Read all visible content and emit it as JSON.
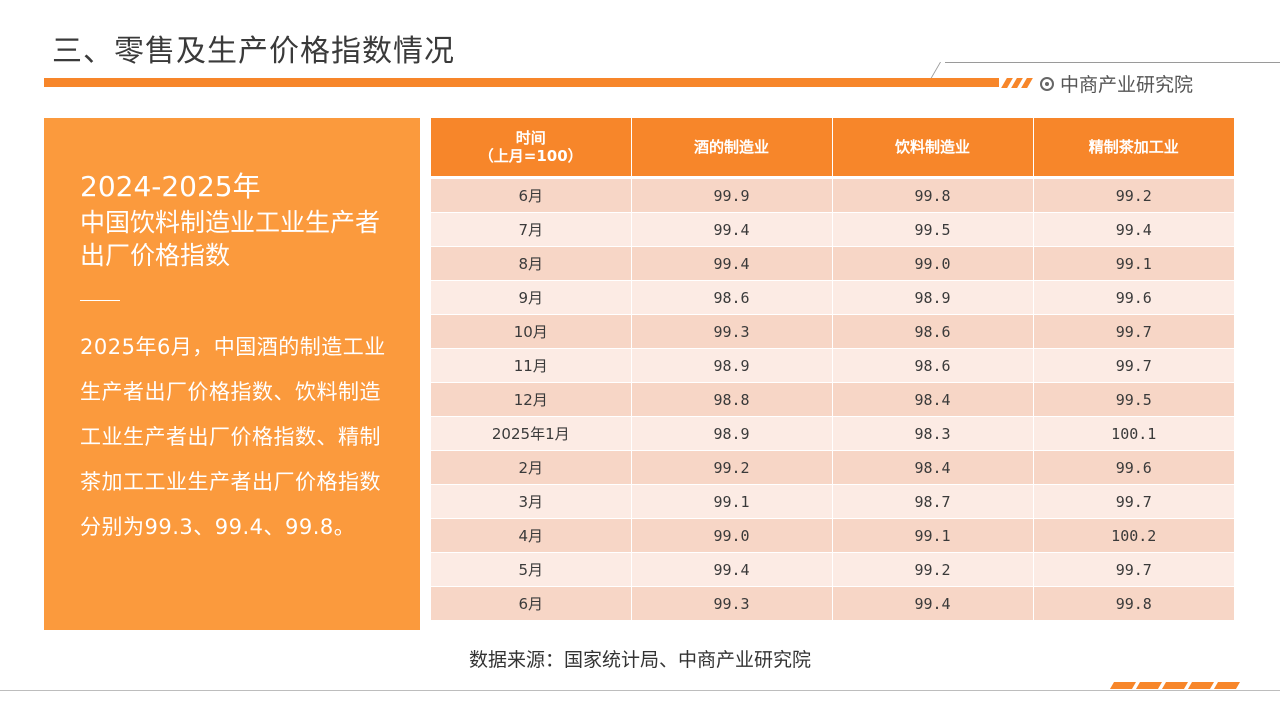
{
  "page": {
    "title": "三、零售及生产价格指数情况",
    "brand_name": "中商产业研究院"
  },
  "summary": {
    "years": "2024-2025年",
    "heading": "中国饮料制造业工业生产者出厂价格指数",
    "body": "2025年6月，中国酒的制造工业生产者出厂价格指数、饮料制造工业生产者出厂价格指数、精制茶加工工业生产者出厂价格指数分别为99.3、99.4、99.8。"
  },
  "table": {
    "headers": {
      "time_line1": "时间",
      "time_line2": "（上月=100）",
      "col1": "酒的制造业",
      "col2": "饮料制造业",
      "col3": "精制茶加工业"
    },
    "rows": [
      {
        "period": "6月",
        "liquor": "99.9",
        "beverage": "99.8",
        "tea": "99.2"
      },
      {
        "period": "7月",
        "liquor": "99.4",
        "beverage": "99.5",
        "tea": "99.4"
      },
      {
        "period": "8月",
        "liquor": "99.4",
        "beverage": "99.0",
        "tea": "99.1"
      },
      {
        "period": "9月",
        "liquor": "98.6",
        "beverage": "98.9",
        "tea": "99.6"
      },
      {
        "period": "10月",
        "liquor": "99.3",
        "beverage": "98.6",
        "tea": "99.7"
      },
      {
        "period": "11月",
        "liquor": "98.9",
        "beverage": "98.6",
        "tea": "99.7"
      },
      {
        "period": "12月",
        "liquor": "98.8",
        "beverage": "98.4",
        "tea": "99.5"
      },
      {
        "period": "2025年1月",
        "liquor": "98.9",
        "beverage": "98.3",
        "tea": "100.1"
      },
      {
        "period": "2月",
        "liquor": "99.2",
        "beverage": "98.4",
        "tea": "99.6"
      },
      {
        "period": "3月",
        "liquor": "99.1",
        "beverage": "98.7",
        "tea": "99.7"
      },
      {
        "period": "4月",
        "liquor": "99.0",
        "beverage": "99.1",
        "tea": "100.2"
      },
      {
        "period": "5月",
        "liquor": "99.4",
        "beverage": "99.2",
        "tea": "99.7"
      },
      {
        "period": "6月",
        "liquor": "99.3",
        "beverage": "99.4",
        "tea": "99.8"
      }
    ]
  },
  "source_note": "数据来源：国家统计局、中商产业研究院",
  "colors": {
    "accent": "#f7862a",
    "panel": "#fb9a3d",
    "row_odd": "#f7d6c6",
    "row_even": "#fcebe4"
  }
}
